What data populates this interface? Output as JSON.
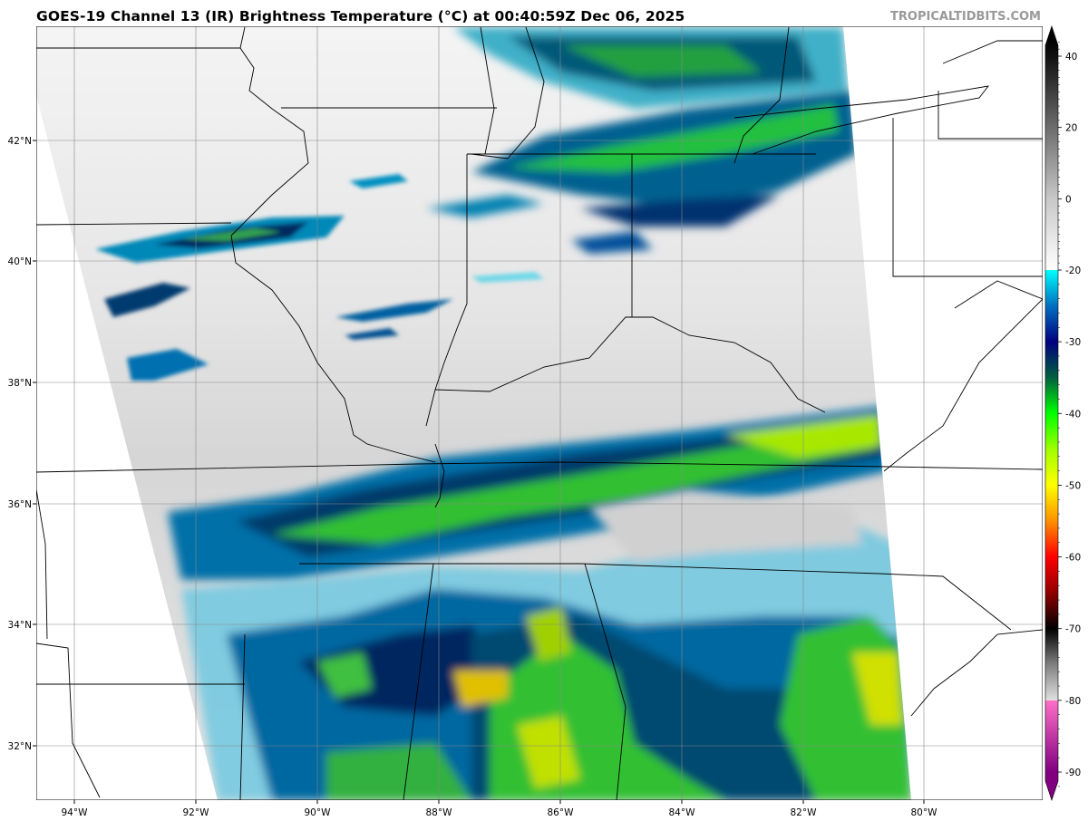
{
  "header": {
    "title": "GOES-19 Channel 13 (IR) Brightness Temperature (°C) at 00:40:59Z Dec 06, 2025",
    "credit": "TROPICALTIDBITS.COM"
  },
  "map": {
    "lat_labels": [
      "42°N",
      "40°N",
      "38°N",
      "36°N",
      "34°N",
      "32°N"
    ],
    "lon_labels": [
      "94°W",
      "92°W",
      "90°W",
      "88°W",
      "86°W",
      "84°W",
      "82°W",
      "80°W"
    ],
    "colors": {
      "gridline": "#888888",
      "border": "#000000",
      "swath_clear": "#d8d8d8"
    }
  },
  "colorbar": {
    "tick_labels": [
      "40",
      "20",
      "0",
      "-20",
      "-30",
      "-40",
      "-50",
      "-60",
      "-70",
      "-80",
      "-90"
    ],
    "color_stops": [
      {
        "temp": 45,
        "color": "#000000"
      },
      {
        "temp": 40,
        "color": "#101010"
      },
      {
        "temp": 0,
        "color": "#c8c8c8"
      },
      {
        "temp": -20,
        "color": "#ffffff"
      },
      {
        "temp": -20,
        "color": "#00ffff"
      },
      {
        "temp": -25,
        "color": "#0070c0"
      },
      {
        "temp": -30,
        "color": "#000080"
      },
      {
        "temp": -35,
        "color": "#006040"
      },
      {
        "temp": -40,
        "color": "#00ff00"
      },
      {
        "temp": -45,
        "color": "#a0ff00"
      },
      {
        "temp": -50,
        "color": "#ffff00"
      },
      {
        "temp": -55,
        "color": "#ff9000"
      },
      {
        "temp": -60,
        "color": "#ff0000"
      },
      {
        "temp": -65,
        "color": "#900000"
      },
      {
        "temp": -70,
        "color": "#000000"
      },
      {
        "temp": -75,
        "color": "#808080"
      },
      {
        "temp": -80,
        "color": "#e0e0e0"
      },
      {
        "temp": -80,
        "color": "#ff70c8"
      },
      {
        "temp": -90,
        "color": "#800080"
      }
    ]
  }
}
